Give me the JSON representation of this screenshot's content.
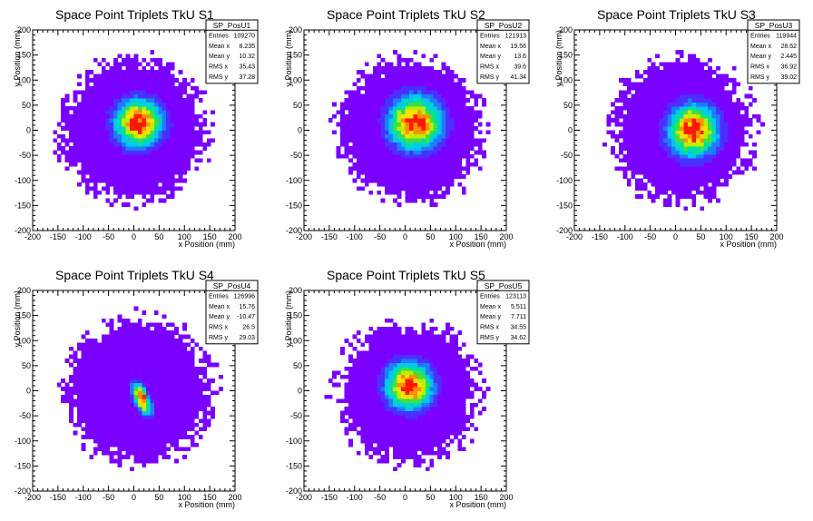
{
  "chart_data": [
    {
      "type": "heatmap",
      "title": "Space Point Triplets TkU S1",
      "xlabel": "x Position (mm)",
      "ylabel": "y Position (mm)",
      "xlim": [
        -200,
        200
      ],
      "ylim": [
        -200,
        200
      ],
      "x_ticks": [
        -200,
        -150,
        -100,
        -50,
        0,
        50,
        100,
        150,
        200
      ],
      "y_ticks": [
        -200,
        -150,
        -100,
        -50,
        0,
        50,
        100,
        150,
        200
      ],
      "stats": {
        "name": "SP_PosU1",
        "rows": [
          {
            "label": "Entries",
            "value": "109270"
          },
          {
            "label": "Mean x",
            "value": "8.235"
          },
          {
            "label": "Mean y",
            "value": "10.32"
          },
          {
            "label": "RMS x",
            "value": "35.43"
          },
          {
            "label": "RMS y",
            "value": "37.28"
          }
        ]
      },
      "distribution": {
        "center_x": 10,
        "center_y": 15,
        "core_sigma_x": 30,
        "core_sigma_y": 30,
        "correlation": 0,
        "footprint_center_x": 0,
        "footprint_center_y": 0,
        "footprint_radius": 160
      }
    },
    {
      "type": "heatmap",
      "title": "Space Point Triplets TkU S2",
      "xlabel": "x Position (mm)",
      "ylabel": "y Position (mm)",
      "xlim": [
        -200,
        200
      ],
      "ylim": [
        -200,
        200
      ],
      "x_ticks": [
        -200,
        -150,
        -100,
        -50,
        0,
        50,
        100,
        150,
        200
      ],
      "y_ticks": [
        -200,
        -150,
        -100,
        -50,
        0,
        50,
        100,
        150,
        200
      ],
      "stats": {
        "name": "SP_PosU2",
        "rows": [
          {
            "label": "Entries",
            "value": "121913"
          },
          {
            "label": "Mean x",
            "value": "19.56"
          },
          {
            "label": "Mean y",
            "value": "13.6"
          },
          {
            "label": "RMS x",
            "value": "39.6"
          },
          {
            "label": "RMS y",
            "value": "41.34"
          }
        ]
      },
      "distribution": {
        "center_x": 20,
        "center_y": 15,
        "core_sigma_x": 34,
        "core_sigma_y": 34,
        "correlation": 0,
        "footprint_center_x": 10,
        "footprint_center_y": 0,
        "footprint_radius": 160
      }
    },
    {
      "type": "heatmap",
      "title": "Space Point Triplets TkU S3",
      "xlabel": "x Position (mm)",
      "ylabel": "y Position (mm)",
      "xlim": [
        -200,
        200
      ],
      "ylim": [
        -200,
        200
      ],
      "x_ticks": [
        -200,
        -150,
        -100,
        -50,
        0,
        50,
        100,
        150,
        200
      ],
      "y_ticks": [
        -200,
        -150,
        -100,
        -50,
        0,
        50,
        100,
        150,
        200
      ],
      "stats": {
        "name": "SP_PosU3",
        "rows": [
          {
            "label": "Entries",
            "value": "119944"
          },
          {
            "label": "Mean x",
            "value": "28.62"
          },
          {
            "label": "Mean y",
            "value": "2.445"
          },
          {
            "label": "RMS x",
            "value": "36.92"
          },
          {
            "label": "RMS y",
            "value": "39.02"
          }
        ]
      },
      "distribution": {
        "center_x": 35,
        "center_y": 0,
        "core_sigma_x": 32,
        "core_sigma_y": 33,
        "correlation": 0,
        "footprint_center_x": 15,
        "footprint_center_y": 0,
        "footprint_radius": 158
      }
    },
    {
      "type": "heatmap",
      "title": "Space Point Triplets TkU S4",
      "xlabel": "x Position (mm)",
      "ylabel": "y Position (mm)",
      "xlim": [
        -200,
        200
      ],
      "ylim": [
        -200,
        200
      ],
      "x_ticks": [
        -200,
        -150,
        -100,
        -50,
        0,
        50,
        100,
        150,
        200
      ],
      "y_ticks": [
        -200,
        -150,
        -100,
        -50,
        0,
        50,
        100,
        150,
        200
      ],
      "stats": {
        "name": "SP_PosU4",
        "rows": [
          {
            "label": "Entries",
            "value": "126996"
          },
          {
            "label": "Mean x",
            "value": "15.76"
          },
          {
            "label": "Mean y",
            "value": "-10.47"
          },
          {
            "label": "RMS x",
            "value": "26.5"
          },
          {
            "label": "RMS y",
            "value": "29.03"
          }
        ]
      },
      "distribution": {
        "center_x": 15,
        "center_y": -15,
        "core_sigma_x": 12,
        "core_sigma_y": 20,
        "correlation": -0.6,
        "footprint_center_x": 10,
        "footprint_center_y": 0,
        "footprint_radius": 162
      }
    },
    {
      "type": "heatmap",
      "title": "Space Point Triplets TkU S5",
      "xlabel": "x Position (mm)",
      "ylabel": "y Position (mm)",
      "xlim": [
        -200,
        200
      ],
      "ylim": [
        -200,
        200
      ],
      "x_ticks": [
        -200,
        -150,
        -100,
        -50,
        0,
        50,
        100,
        150,
        200
      ],
      "y_ticks": [
        -200,
        -150,
        -100,
        -50,
        0,
        50,
        100,
        150,
        200
      ],
      "stats": {
        "name": "SP_PosU5",
        "rows": [
          {
            "label": "Entries",
            "value": "123113"
          },
          {
            "label": "Mean x",
            "value": "5.511"
          },
          {
            "label": "Mean y",
            "value": "7.711"
          },
          {
            "label": "RMS x",
            "value": "34.55"
          },
          {
            "label": "RMS y",
            "value": "34.62"
          }
        ]
      },
      "distribution": {
        "center_x": 8,
        "center_y": 10,
        "core_sigma_x": 30,
        "core_sigma_y": 30,
        "correlation": 0,
        "footprint_center_x": 5,
        "footprint_center_y": -5,
        "footprint_radius": 158
      }
    }
  ],
  "colors": {
    "palette": [
      "#7a00ff",
      "#4a30ff",
      "#1f7cff",
      "#00c8f0",
      "#00e0a0",
      "#40e040",
      "#b8f000",
      "#ffe000",
      "#ff9000",
      "#ff1800"
    ],
    "axis": "#000000",
    "stats_border": "#000000",
    "background": "#ffffff"
  }
}
